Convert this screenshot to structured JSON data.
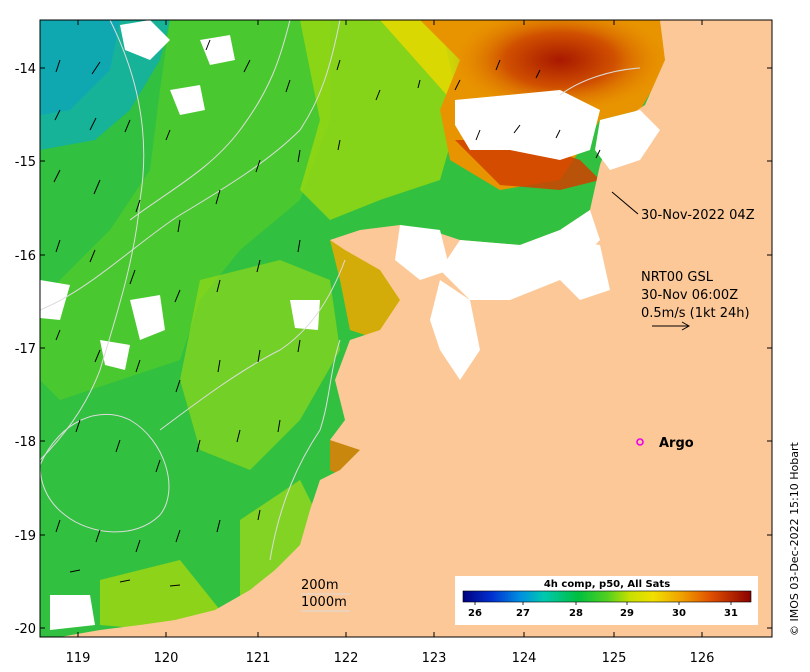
{
  "map": {
    "x_ticks": [
      "119",
      "120",
      "121",
      "122",
      "123",
      "124",
      "125",
      "126"
    ],
    "y_ticks": [
      "-14",
      "-15",
      "-16",
      "-17",
      "-18",
      "-19",
      "-20"
    ],
    "lon_range": [
      118.6,
      126.8
    ],
    "lat_range": [
      -20.2,
      -13.5
    ]
  },
  "annotations": {
    "sst_time": "30-Nov-2022 04Z",
    "current_product": "NRT00 GSL",
    "current_time": "30-Nov 06:00Z",
    "current_scale": "0.5m/s (1kt 24h)",
    "argo_label": "Argo",
    "contour_200": "200m",
    "contour_1000": "1000m"
  },
  "colorbar": {
    "title": "4h comp, p50, All Sats",
    "ticks": [
      "26",
      "27",
      "28",
      "29",
      "30",
      "31"
    ],
    "range": [
      25.5,
      31.5
    ]
  },
  "credit": "© IMOS 03-Dec-2022 15:10 Hobart",
  "colors": {
    "land": "#fdc898",
    "argo_marker": "#ee00ee",
    "contour": "#dcdcdc"
  }
}
